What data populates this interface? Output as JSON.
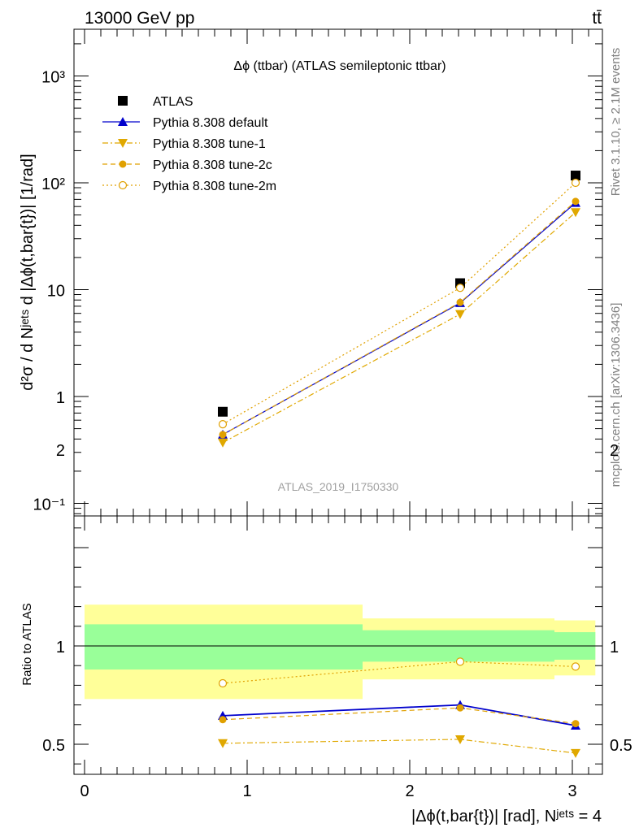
{
  "header": {
    "energy": "13000 GeV pp",
    "process": "tt̄"
  },
  "side_labels": {
    "rivet": "Rivet 3.1.10, ≥ 2.1M events",
    "mcplots": "mcplots.cern.ch [arXiv:1306.3436]"
  },
  "chart_data": [
    {
      "type": "line",
      "panel": "main",
      "title": "Δϕ (ttbar) (ATLAS semileptonic ttbar)",
      "watermark": "ATLAS_2019_I1750330",
      "ylabel": "d²σ / d Nʲᵉᵗˢ d |Δϕ(t,bar{t})| [1/rad]",
      "yscale": "log",
      "xlim": [
        -0.1,
        3.2
      ],
      "ylim": [
        0.08,
        2800
      ],
      "ytick_labels": [
        "10⁻¹",
        "1",
        "10",
        "10²",
        "10³"
      ],
      "legend_position": "top-left",
      "x": [
        0.85,
        2.31,
        3.02
      ],
      "series": [
        {
          "name": "ATLAS",
          "values": [
            0.72,
            11.5,
            117
          ],
          "color": "#000000",
          "marker": "square",
          "line": "none"
        },
        {
          "name": "Pythia 8.308 default",
          "values": [
            0.44,
            7.5,
            65
          ],
          "color": "#0000cc",
          "marker": "triangle-up",
          "line": "solid"
        },
        {
          "name": "Pythia 8.308 tune-1",
          "values": [
            0.37,
            5.9,
            53
          ],
          "color": "#e0a800",
          "marker": "triangle-down",
          "line": "dashdot"
        },
        {
          "name": "Pythia 8.308 tune-2c",
          "values": [
            0.44,
            7.6,
            67
          ],
          "color": "#e0a000",
          "marker": "circle",
          "line": "dashed"
        },
        {
          "name": "Pythia 8.308 tune-2m",
          "values": [
            0.55,
            10.4,
            100
          ],
          "color": "#e0a000",
          "marker": "circle-open",
          "line": "dotted"
        }
      ]
    },
    {
      "type": "line",
      "panel": "ratio",
      "ylabel": "Ratio to ATLAS",
      "xlabel": "|Δϕ(t,bar{t})| [rad], Nʲᵉᵗˢ = 4",
      "xlim": [
        -0.1,
        3.2
      ],
      "ylim": [
        0.3,
        2.3
      ],
      "xtick_labels": [
        "0",
        "1",
        "2",
        "3"
      ],
      "ytick_labels": [
        "0.5",
        "1",
        "2"
      ],
      "reference": 1,
      "bins": [
        {
          "lo": 0.0,
          "hi": 1.71,
          "stat": [
            0.88,
            1.11
          ],
          "total": [
            0.73,
            1.21
          ]
        },
        {
          "lo": 1.71,
          "hi": 2.89,
          "stat": [
            0.92,
            1.08
          ],
          "total": [
            0.83,
            1.14
          ]
        },
        {
          "lo": 2.89,
          "hi": 3.1416,
          "stat": [
            0.93,
            1.07
          ],
          "total": [
            0.85,
            1.13
          ]
        }
      ],
      "x": [
        0.85,
        2.31,
        3.02
      ],
      "series": [
        {
          "name": "Pythia 8.308 default",
          "values": [
            0.645,
            0.7,
            0.595
          ],
          "color": "#0000cc",
          "marker": "triangle-up",
          "line": "solid"
        },
        {
          "name": "Pythia 8.308 tune-1",
          "values": [
            0.505,
            0.525,
            0.455
          ],
          "color": "#e0a800",
          "marker": "triangle-down",
          "line": "dashdot"
        },
        {
          "name": "Pythia 8.308 tune-2c",
          "values": [
            0.625,
            0.685,
            0.605
          ],
          "color": "#e0a000",
          "marker": "circle",
          "line": "dashed"
        },
        {
          "name": "Pythia 8.308 tune-2m",
          "values": [
            0.81,
            0.92,
            0.895
          ],
          "color": "#e0a000",
          "marker": "circle-open",
          "line": "dotted"
        }
      ],
      "band_colors": {
        "stat": "#99ff99",
        "total": "#ffff99"
      }
    }
  ]
}
